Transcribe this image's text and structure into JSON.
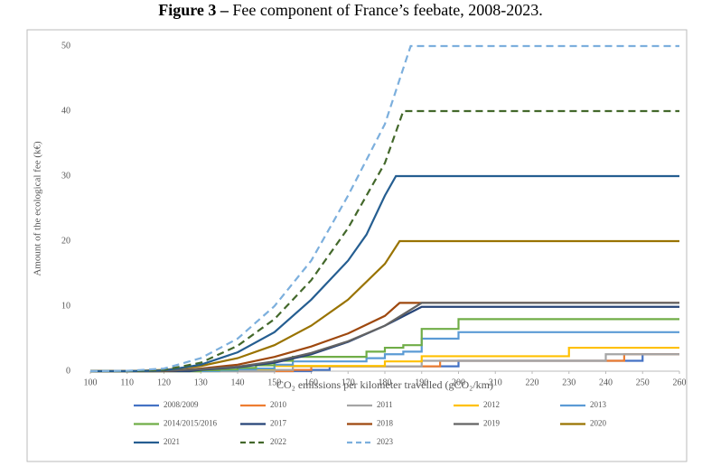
{
  "chart_data": {
    "type": "line",
    "title_label": "Figure 3 –",
    "title": "Fee component of France’s feebate, 2008-2023.",
    "x_label": "CO₂ emissions per kilometer travelled (gCO₂/km)",
    "y_label": "Amount of the ecological fee (k€)",
    "xlim": [
      100,
      260
    ],
    "xticks": [
      100,
      110,
      120,
      130,
      140,
      150,
      160,
      170,
      180,
      190,
      200,
      210,
      220,
      230,
      240,
      250,
      260
    ],
    "ylim": [
      0,
      50
    ],
    "yticks": [
      0,
      10,
      20,
      30,
      40,
      50
    ],
    "grid": false,
    "legend": "bottom",
    "series": [
      {
        "name": "2008/2009",
        "color": "#4472c4",
        "dashed": false,
        "x": [
          100,
          160,
          160,
          165,
          165,
          200,
          200,
          250,
          250,
          260
        ],
        "values": [
          0,
          0,
          0.2,
          0.2,
          0.75,
          0.75,
          1.6,
          1.6,
          2.6,
          2.6
        ]
      },
      {
        "name": "2010",
        "color": "#ed7d31",
        "dashed": false,
        "x": [
          100,
          155,
          155,
          160,
          160,
          195,
          195,
          245,
          245,
          260
        ],
        "values": [
          0,
          0,
          0.2,
          0.2,
          0.75,
          0.75,
          1.6,
          1.6,
          2.6,
          2.6
        ]
      },
      {
        "name": "2011",
        "color": "#a5a5a5",
        "dashed": false,
        "x": [
          100,
          150,
          150,
          155,
          155,
          190,
          190,
          240,
          240,
          260
        ],
        "values": [
          0,
          0,
          0.2,
          0.2,
          0.75,
          0.75,
          1.6,
          1.6,
          2.6,
          2.6
        ]
      },
      {
        "name": "2012",
        "color": "#ffc000",
        "dashed": false,
        "x": [
          100,
          135,
          135,
          140,
          140,
          150,
          150,
          180,
          180,
          190,
          190,
          230,
          230,
          260
        ],
        "values": [
          0,
          0,
          0.1,
          0.1,
          0.3,
          0.3,
          0.8,
          0.8,
          1.5,
          1.5,
          2.3,
          2.3,
          3.6,
          3.6
        ]
      },
      {
        "name": "2013",
        "color": "#5b9bd5",
        "dashed": false,
        "x": [
          100,
          135,
          135,
          140,
          140,
          145,
          145,
          150,
          150,
          155,
          155,
          175,
          175,
          180,
          180,
          185,
          185,
          190,
          190,
          200,
          200,
          260
        ],
        "values": [
          0,
          0,
          0.1,
          0.1,
          0.3,
          0.3,
          0.4,
          0.4,
          1,
          1,
          1.5,
          1.5,
          2,
          2,
          2.6,
          2.6,
          3,
          3,
          5,
          5,
          6,
          6
        ]
      },
      {
        "name": "2014/2015/2016",
        "color": "#70ad47",
        "dashed": false,
        "x": [
          100,
          130,
          130,
          135,
          135,
          140,
          140,
          145,
          145,
          150,
          150,
          155,
          155,
          175,
          175,
          180,
          180,
          185,
          185,
          190,
          190,
          200,
          200,
          260
        ],
        "values": [
          0,
          0,
          0.15,
          0.15,
          0.25,
          0.25,
          0.5,
          0.5,
          0.9,
          0.9,
          1.6,
          1.6,
          2.2,
          2.2,
          3,
          3,
          3.6,
          3.6,
          4,
          4,
          6.5,
          6.5,
          8,
          8
        ]
      },
      {
        "name": "2017",
        "color": "#264478",
        "dashed": false,
        "x": [
          100,
          127,
          130,
          140,
          150,
          160,
          170,
          180,
          190,
          260
        ],
        "values": [
          0,
          0,
          0.2,
          0.6,
          1.3,
          2.6,
          4.5,
          7,
          9.9,
          9.9
        ]
      },
      {
        "name": "2018",
        "color": "#9e480e",
        "dashed": false,
        "x": [
          100,
          120,
          130,
          140,
          150,
          160,
          170,
          180,
          184,
          260
        ],
        "values": [
          0,
          0,
          0.4,
          1,
          2.2,
          3.8,
          5.8,
          8.5,
          10.5,
          10.5
        ]
      },
      {
        "name": "2019",
        "color": "#636363",
        "dashed": false,
        "x": [
          100,
          117,
          130,
          140,
          150,
          160,
          170,
          180,
          190,
          260
        ],
        "values": [
          0,
          0,
          0.3,
          0.7,
          1.5,
          2.8,
          4.6,
          7,
          10.5,
          10.5
        ]
      },
      {
        "name": "2020",
        "color": "#997300",
        "dashed": false,
        "x": [
          100,
          110,
          120,
          130,
          140,
          150,
          160,
          170,
          180,
          184,
          260
        ],
        "values": [
          0,
          0,
          0.2,
          0.8,
          2,
          4,
          7,
          11,
          16.5,
          20,
          20
        ]
      },
      {
        "name": "2021",
        "color": "#255e91",
        "dashed": false,
        "x": [
          100,
          110,
          120,
          130,
          140,
          150,
          160,
          170,
          175,
          180,
          183,
          260
        ],
        "values": [
          0,
          0,
          0.1,
          1,
          2.9,
          6,
          11,
          17,
          21,
          27,
          30,
          30
        ]
      },
      {
        "name": "2022",
        "color": "#43682b",
        "dashed": true,
        "x": [
          100,
          110,
          120,
          130,
          140,
          150,
          160,
          170,
          180,
          185,
          260
        ],
        "values": [
          0,
          0,
          0.2,
          1.3,
          3.9,
          8,
          14,
          22,
          32,
          40,
          40
        ]
      },
      {
        "name": "2023",
        "color": "#7cafdd",
        "dashed": true,
        "x": [
          100,
          110,
          120,
          130,
          140,
          150,
          160,
          170,
          180,
          187,
          260
        ],
        "values": [
          0,
          0.05,
          0.4,
          2,
          5,
          10,
          17,
          27,
          38,
          50,
          50
        ]
      }
    ]
  }
}
